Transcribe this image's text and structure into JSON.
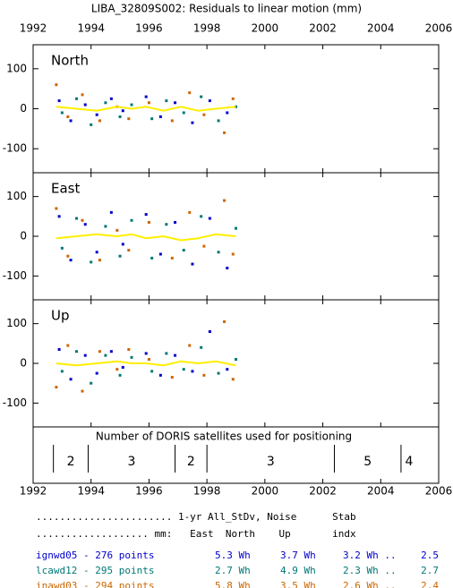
{
  "title": "LIBA_32809S002: Residuals to linear motion (mm)",
  "chart_data": [
    {
      "type": "scatter",
      "label": "North",
      "xlim": [
        1992,
        2006
      ],
      "xticks": [
        1992,
        1994,
        1996,
        1998,
        2000,
        2002,
        2004,
        2006
      ],
      "ylim": [
        -160,
        160
      ],
      "yticks": [
        -100,
        0,
        100
      ],
      "series": [
        {
          "color": "#0000cc",
          "x": [
            1992.9,
            1993.3,
            1993.8,
            1994.2,
            1994.7,
            1995.1,
            1995.9,
            1996.4,
            1996.9,
            1997.5,
            1998.1,
            1998.7
          ],
          "values": [
            20,
            -30,
            10,
            -15,
            25,
            -5,
            30,
            -20,
            15,
            -35,
            20,
            -10
          ]
        },
        {
          "color": "#007777",
          "x": [
            1993.0,
            1993.5,
            1994.0,
            1994.5,
            1995.0,
            1995.4,
            1996.1,
            1996.6,
            1997.2,
            1997.8,
            1998.4,
            1999.0
          ],
          "values": [
            -10,
            25,
            -40,
            15,
            -20,
            10,
            -25,
            20,
            -10,
            30,
            -30,
            5
          ]
        },
        {
          "color": "#cc6600",
          "x": [
            1992.8,
            1993.2,
            1993.7,
            1994.3,
            1994.9,
            1995.3,
            1996.0,
            1996.8,
            1997.4,
            1997.9,
            1998.6,
            1998.9
          ],
          "values": [
            60,
            -20,
            35,
            -30,
            5,
            -25,
            15,
            -30,
            40,
            -15,
            -60,
            25
          ]
        }
      ],
      "trend": {
        "color": "#ffee00",
        "x": [
          1992.8,
          1993.5,
          1994.2,
          1994.9,
          1995.4,
          1995.9,
          1996.5,
          1997.1,
          1997.7,
          1998.3,
          1999.0
        ],
        "values": [
          5,
          0,
          -5,
          5,
          0,
          5,
          -5,
          5,
          -5,
          0,
          5
        ]
      }
    },
    {
      "type": "scatter",
      "label": "East",
      "ylim": [
        -160,
        160
      ],
      "yticks": [
        -100,
        0,
        100
      ],
      "series": [
        {
          "color": "#0000cc",
          "x": [
            1992.9,
            1993.3,
            1993.8,
            1994.2,
            1994.7,
            1995.1,
            1995.9,
            1996.4,
            1996.9,
            1997.5,
            1998.1,
            1998.7
          ],
          "values": [
            50,
            -60,
            30,
            -40,
            60,
            -20,
            55,
            -45,
            35,
            -70,
            45,
            -80
          ]
        },
        {
          "color": "#007777",
          "x": [
            1993.0,
            1993.5,
            1994.0,
            1994.5,
            1995.0,
            1995.4,
            1996.1,
            1996.6,
            1997.2,
            1997.8,
            1998.4,
            1999.0
          ],
          "values": [
            -30,
            45,
            -65,
            25,
            -50,
            40,
            -55,
            30,
            -35,
            50,
            -40,
            20
          ]
        },
        {
          "color": "#cc6600",
          "x": [
            1992.8,
            1993.2,
            1993.7,
            1994.3,
            1994.9,
            1995.3,
            1996.0,
            1996.8,
            1997.4,
            1997.9,
            1998.6,
            1998.9
          ],
          "values": [
            70,
            -50,
            40,
            -60,
            15,
            -35,
            35,
            -55,
            60,
            -25,
            90,
            -45
          ]
        }
      ],
      "trend": {
        "color": "#ffee00",
        "x": [
          1992.8,
          1993.5,
          1994.2,
          1994.9,
          1995.4,
          1995.9,
          1996.5,
          1997.1,
          1997.7,
          1998.3,
          1999.0
        ],
        "values": [
          -5,
          0,
          5,
          0,
          5,
          -5,
          0,
          -10,
          -5,
          5,
          0
        ]
      }
    },
    {
      "type": "scatter",
      "label": "Up",
      "ylim": [
        -160,
        160
      ],
      "yticks": [
        -100,
        0,
        100
      ],
      "series": [
        {
          "color": "#0000cc",
          "x": [
            1992.9,
            1993.3,
            1993.8,
            1994.2,
            1994.7,
            1995.1,
            1995.9,
            1996.4,
            1996.9,
            1997.5,
            1998.1,
            1998.7
          ],
          "values": [
            35,
            -40,
            20,
            -25,
            30,
            -10,
            25,
            -30,
            20,
            -20,
            80,
            -15
          ]
        },
        {
          "color": "#007777",
          "x": [
            1993.0,
            1993.5,
            1994.0,
            1994.5,
            1995.0,
            1995.4,
            1996.1,
            1996.6,
            1997.2,
            1997.8,
            1998.4,
            1999.0
          ],
          "values": [
            -20,
            30,
            -50,
            20,
            -30,
            15,
            -20,
            25,
            -15,
            40,
            -25,
            10
          ]
        },
        {
          "color": "#cc6600",
          "x": [
            1992.8,
            1993.2,
            1993.7,
            1994.3,
            1994.9,
            1995.3,
            1996.0,
            1996.8,
            1997.4,
            1997.9,
            1998.6,
            1998.9
          ],
          "values": [
            -60,
            45,
            -70,
            30,
            -15,
            35,
            10,
            -35,
            45,
            -30,
            105,
            -40
          ]
        }
      ],
      "trend": {
        "color": "#ffee00",
        "x": [
          1992.8,
          1993.5,
          1994.2,
          1994.9,
          1995.4,
          1995.9,
          1996.5,
          1997.1,
          1997.7,
          1998.3,
          1999.0
        ],
        "values": [
          0,
          -5,
          0,
          5,
          0,
          0,
          -5,
          5,
          0,
          5,
          -5
        ]
      }
    },
    {
      "type": "timeline",
      "label": "Number of DORIS satellites used for positioning",
      "xlim": [
        1992,
        2006
      ],
      "xticks": [
        1992,
        1994,
        1996,
        1998,
        2000,
        2002,
        2004,
        2006
      ],
      "boundaries": [
        1992.7,
        1993.9,
        1996.9,
        1998.0,
        2002.4,
        2004.7
      ],
      "counts": [
        2,
        3,
        2,
        3,
        5,
        4
      ]
    }
  ],
  "table": {
    "header": [
      "....................... 1-yr All_StDv, Noise      Stab",
      "................... mm:   East  North    Up       indx"
    ],
    "rows": [
      {
        "color": "#0000cc",
        "cells": [
          "ignwd05 - 276 points",
          "5.3 Wh",
          "3.7 Wh",
          "3.2 Wh ..",
          "2.5"
        ]
      },
      {
        "color": "#007777",
        "cells": [
          "lcawd12 - 295 points",
          "2.7 Wh",
          "4.9 Wh",
          "2.3 Wh ..",
          "2.7"
        ]
      },
      {
        "color": "#cc6600",
        "cells": [
          "inawd03 - 294 points",
          "5.8 Wh",
          "3.5 Wh",
          "2.6 Wh ..",
          "2.4"
        ]
      }
    ]
  }
}
